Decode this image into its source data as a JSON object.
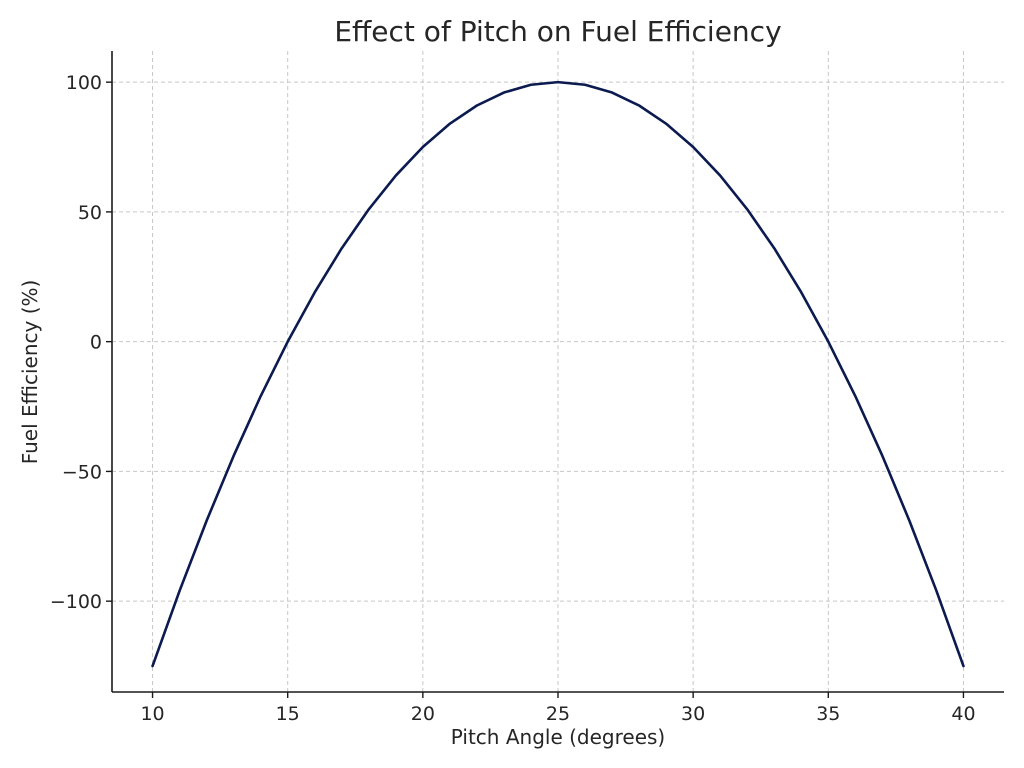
{
  "chart_data": {
    "type": "line",
    "title": "Effect of Pitch on Fuel Efficiency",
    "xlabel": "Pitch Angle (degrees)",
    "ylabel": "Fuel Efficiency (%)",
    "xlim": [
      8.5,
      41.5
    ],
    "ylim": [
      -135,
      112
    ],
    "xticks": [
      10,
      15,
      20,
      25,
      30,
      35,
      40
    ],
    "yticks": [
      -100,
      -50,
      0,
      50,
      100
    ],
    "xtick_labels": [
      "10",
      "15",
      "20",
      "25",
      "30",
      "35",
      "40"
    ],
    "ytick_labels": [
      "−100",
      "−50",
      "0",
      "50",
      "100"
    ],
    "grid": true,
    "series": [
      {
        "color": "#0b1a4f",
        "x": [
          10,
          11,
          12,
          13,
          14,
          15,
          16,
          17,
          18,
          19,
          20,
          21,
          22,
          23,
          24,
          25,
          26,
          27,
          28,
          29,
          30,
          31,
          32,
          33,
          34,
          35,
          36,
          37,
          38,
          39,
          40
        ],
        "y": [
          -125,
          -96,
          -69,
          -44,
          -21,
          0,
          19,
          36,
          51,
          64,
          75,
          84,
          91,
          96,
          99,
          100,
          99,
          96,
          91,
          84,
          75,
          64,
          51,
          36,
          19,
          0,
          -21,
          -44,
          -69,
          -96,
          -125
        ]
      }
    ]
  }
}
